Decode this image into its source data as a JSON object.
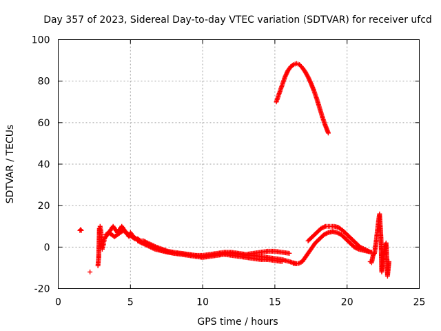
{
  "chart_data": {
    "type": "scatter",
    "title": "Day 357 of 2023, Sidereal Day-to-day VTEC variation (SDTVAR) for receiver ufcd",
    "xlabel": "GPS time / hours",
    "ylabel": "SDTVAR / TECUs",
    "xlim": [
      0,
      25
    ],
    "ylim": [
      -20,
      100
    ],
    "xticks": [
      0,
      5,
      10,
      15,
      20,
      25
    ],
    "yticks": [
      -20,
      0,
      20,
      40,
      60,
      80,
      100
    ],
    "grid": true,
    "marker": "plus",
    "color": "#ff0000",
    "series": [
      {
        "name": "SDTVAR",
        "segments": [
          {
            "x": [
              1.5,
              1.55,
              1.6
            ],
            "y": [
              8,
              8.5,
              8
            ]
          },
          {
            "x": [
              2.2
            ],
            "y": [
              -12
            ]
          },
          {
            "x": [
              2.75,
              2.8,
              2.85,
              2.9,
              2.95,
              3.0,
              3.05,
              3.1,
              3.15,
              3.2,
              3.3,
              3.4,
              3.5,
              3.6,
              3.7,
              3.8,
              3.9,
              4.0,
              4.1,
              4.2,
              4.3,
              4.4,
              4.5,
              4.6,
              4.7,
              4.8,
              4.9,
              5.0,
              5.1,
              5.2,
              5.4,
              5.6,
              5.8,
              6.0,
              6.3,
              6.6,
              7.0,
              7.5,
              8.0,
              8.5,
              9.0,
              9.5,
              10.0,
              10.5,
              11.0,
              11.5,
              12.0,
              12.5,
              13.0,
              13.5,
              14.0,
              14.5,
              15.0,
              15.5,
              16.0,
              16.5
            ],
            "y": [
              -9,
              -5,
              9,
              10,
              8,
              3,
              -1,
              0,
              2,
              4,
              5,
              6,
              7,
              8,
              9,
              10,
              9,
              8,
              7,
              8,
              9,
              10,
              9,
              8,
              7,
              6,
              5,
              7,
              6,
              5,
              4,
              3,
              2,
              2,
              1,
              0,
              -1,
              -2,
              -3,
              -3,
              -3.5,
              -4,
              -4.5,
              -4,
              -3.5,
              -3,
              -3,
              -3.5,
              -4,
              -4,
              -4.5,
              -5,
              -5.5,
              -6,
              -7,
              -8
            ]
          },
          {
            "x": [
              3.3,
              3.5,
              3.7,
              3.9,
              4.1,
              4.3,
              4.5,
              4.7,
              4.9,
              5.1,
              5.3,
              5.5,
              5.7,
              5.9,
              6.2,
              6.5,
              6.8,
              7.2,
              7.6,
              8.0,
              8.5,
              9.0,
              9.5,
              10.0,
              10.5,
              11.0,
              11.5,
              12.0,
              12.5,
              13.0,
              13.5,
              14.0,
              14.5,
              15.0,
              15.5,
              16.0
            ],
            "y": [
              6,
              7,
              6,
              5,
              6,
              7,
              8,
              7,
              6,
              5,
              4,
              4,
              3,
              3,
              2,
              1,
              0,
              -1,
              -2,
              -2.5,
              -3,
              -3.5,
              -4,
              -4,
              -3.5,
              -3,
              -2.5,
              -2.5,
              -3,
              -3.5,
              -3,
              -2.5,
              -2,
              -2,
              -2.5,
              -3
            ]
          },
          {
            "x": [
              5.5,
              5.8,
              6.1,
              6.4,
              6.7,
              7.0,
              7.3,
              7.6,
              8.0,
              8.5,
              9.0,
              9.5,
              10.0,
              10.5,
              11.0,
              11.5,
              12.0,
              12.5,
              13.0,
              13.5,
              14.0,
              14.5,
              15.0,
              15.5
            ],
            "y": [
              3,
              2,
              1,
              0,
              -1,
              -1.5,
              -2,
              -2.5,
              -3,
              -3.5,
              -4,
              -4.5,
              -5,
              -4.5,
              -4,
              -3.5,
              -4,
              -4.5,
              -5,
              -5.5,
              -6,
              -6,
              -6.5,
              -7
            ]
          },
          {
            "x": [
              15.1,
              15.3,
              15.5,
              15.7,
              15.9,
              16.1,
              16.3,
              16.5,
              16.7,
              16.9,
              17.1,
              17.3,
              17.5,
              17.7,
              17.9,
              18.1,
              18.3,
              18.5,
              18.7
            ],
            "y": [
              70,
              74,
              78,
              82,
              85,
              87,
              88,
              88.5,
              88,
              86.5,
              84.5,
              82,
              79,
              75.5,
              71.5,
              67,
              62.5,
              58.5,
              55
            ]
          },
          {
            "x": [
              16.3,
              16.6,
              16.9,
              17.2,
              17.5,
              17.8,
              18.1,
              18.4,
              18.7,
              19.0,
              19.3,
              19.6,
              19.9,
              20.2,
              20.5,
              20.8,
              21.1,
              21.4,
              21.7
            ],
            "y": [
              -8,
              -8,
              -7,
              -4,
              -1,
              2,
              4,
              6,
              7,
              7.5,
              7,
              6,
              4,
              2,
              0,
              -1,
              -1.5,
              -2,
              -2.5
            ]
          },
          {
            "x": [
              17.3,
              17.6,
              17.9,
              18.2,
              18.5,
              18.8,
              19.1,
              19.4,
              19.7,
              20.0,
              20.3,
              20.6,
              20.9,
              21.2,
              21.5
            ],
            "y": [
              3,
              5,
              7,
              9,
              10,
              10,
              10,
              9.5,
              8,
              6,
              4,
              2,
              0,
              -1,
              -2
            ]
          },
          {
            "x": [
              21.6,
              21.7,
              21.8,
              21.9,
              22.0,
              22.05,
              22.1,
              22.15,
              22.2,
              22.25,
              22.3,
              22.35,
              22.4,
              22.5,
              22.6,
              22.7,
              22.8,
              22.9
            ],
            "y": [
              -7,
              -7.5,
              -4,
              -3,
              2,
              5,
              8,
              11,
              14,
              16,
              10,
              4,
              -12,
              -6,
              -1,
              2,
              -14,
              -7
            ]
          }
        ]
      }
    ]
  }
}
